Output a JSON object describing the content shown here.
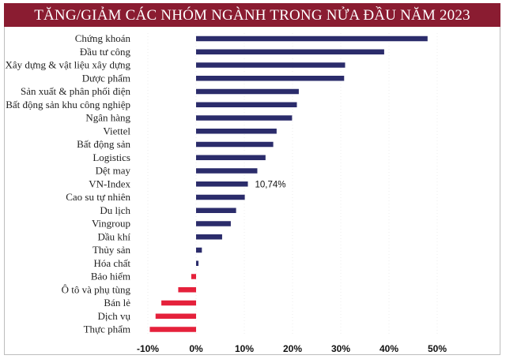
{
  "chart_data": {
    "type": "bar",
    "orientation": "horizontal",
    "title": "TĂNG/GIẢM CÁC NHÓM NGÀNH TRONG NỬA ĐẦU NĂM 2023",
    "xlabel": "",
    "ylabel": "",
    "xlim": [
      -10,
      50
    ],
    "x_ticks": [
      "-10%",
      "0%",
      "10%",
      "20%",
      "30%",
      "40%",
      "50%"
    ],
    "grid": "faint vertical dotted",
    "categories": [
      "Chứng khoán",
      "Đầu tư công",
      "Xây dựng & vật liệu xây dựng",
      "Dược phẩm",
      "Sản xuất & phân phối điện",
      "Bất động sản khu công nghiệp",
      "Ngân hàng",
      "Viettel",
      "Bất động sản",
      "Logistics",
      "Dệt may",
      "VN-Index",
      "Cao su tự nhiên",
      "Du lịch",
      "Vingroup",
      "Dầu khí",
      "Thủy sản",
      "Hóa chất",
      "Bảo hiểm",
      "Ô tô và phụ tùng",
      "Bán lẻ",
      "Dịch vụ",
      "Thực phẩm"
    ],
    "values": [
      48.0,
      39.0,
      30.9,
      30.7,
      21.3,
      20.9,
      19.9,
      16.7,
      16.0,
      14.4,
      12.7,
      10.74,
      10.1,
      8.3,
      7.2,
      5.4,
      1.2,
      0.5,
      -1.0,
      -3.7,
      -7.2,
      -8.4,
      -9.6
    ],
    "data_labels": {
      "VN-Index": "10,74%"
    },
    "colors": {
      "positive": "#2b2c6b",
      "negative": "#e5213b",
      "title_bg": "#8a1c31"
    }
  }
}
